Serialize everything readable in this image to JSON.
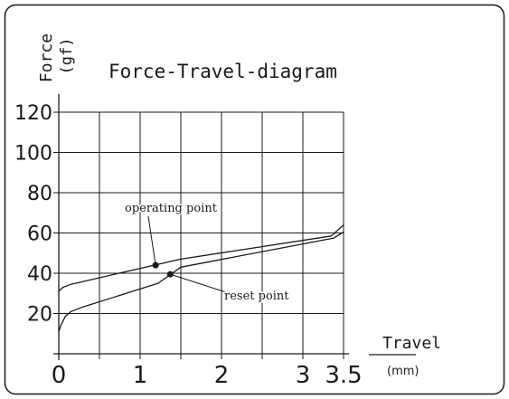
{
  "colors": {
    "ink": "#1a1a1a",
    "background": "#ffffff"
  },
  "chart_data": {
    "type": "line",
    "title": "Force-Travel-diagram",
    "ylabel": "Force",
    "yunit": "(gf)",
    "xlabel": "Travel",
    "xunit": "(mm)",
    "xlim": [
      0,
      3.5
    ],
    "ylim": [
      0,
      120
    ],
    "xticks": [
      0,
      1,
      2,
      3,
      3.5
    ],
    "xtick_labels": [
      "0",
      "1",
      "2",
      "3",
      "3.5"
    ],
    "yticks": [
      20,
      40,
      60,
      80,
      100,
      120
    ],
    "ytick_labels": [
      "20",
      "40",
      "60",
      "80",
      "100",
      "120"
    ],
    "x_grid_step": 0.5,
    "y_grid_step": 20,
    "grid": true,
    "series": [
      {
        "points": [
          [
            0,
            31
          ],
          [
            0.05,
            33
          ],
          [
            0.15,
            34.5
          ],
          [
            1.5,
            47
          ],
          [
            3.35,
            58.5
          ],
          [
            3.5,
            64
          ]
        ]
      },
      {
        "points": [
          [
            0,
            11
          ],
          [
            0.03,
            14.5
          ],
          [
            0.08,
            18.5
          ],
          [
            0.15,
            21
          ],
          [
            0.28,
            23
          ],
          [
            1.22,
            35
          ],
          [
            1.5,
            43
          ],
          [
            3.38,
            57.5
          ],
          [
            3.5,
            60.5
          ]
        ]
      }
    ],
    "annotations": [
      {
        "text": "operating point",
        "x": 1.19,
        "y": 44
      },
      {
        "text": "reset point",
        "x": 1.37,
        "y": 39.5
      }
    ]
  }
}
